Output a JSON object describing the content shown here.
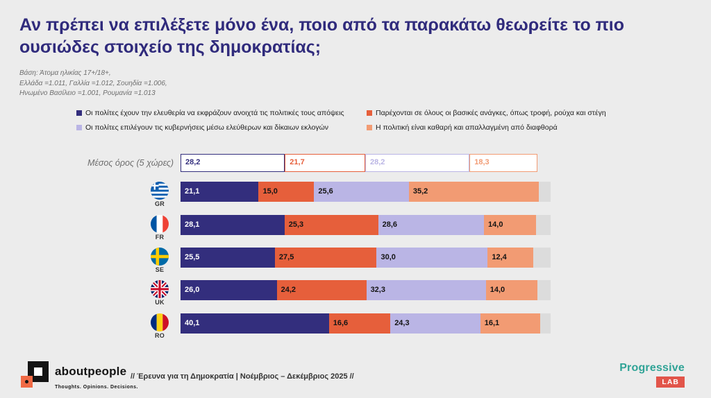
{
  "title": "Αν πρέπει να επιλέξετε μόνο ένα, ποιο από τα παρακάτω θεωρείτε το πιο ουσιώδες στοιχείο της δημοκρατίας;",
  "base_note": {
    "line1": "Βάση:  Άτομα ηλικίας 17+/18+,",
    "line2": "Ελλάδα =1.011, Γαλλία =1.012, Σουηδία =1.006,",
    "line3": "Ηνωμένο Βασίλειο =1.001, Ρουμανία =1.013"
  },
  "chart_data": {
    "type": "bar",
    "stacked": true,
    "orientation": "horizontal",
    "unit": "%",
    "xlim": [
      0,
      100
    ],
    "legend_position": "top",
    "series": [
      {
        "name": "Οι πολίτες έχουν την ελευθερία να εκφράζουν ανοιχτά τις πολιτικές τους απόψεις",
        "color": "#332e7d"
      },
      {
        "name": "Παρέχονται σε όλους οι βασικές ανάγκες, όπως τροφή, ρούχα και στέγη",
        "color": "#e65f3b"
      },
      {
        "name": "Οι πολίτες επιλέγουν τις κυβερνήσεις μέσω ελεύθερων και δίκαιων εκλογών",
        "color": "#bab5e5"
      },
      {
        "name": "Η πολιτική είναι καθαρή και απαλλαγμένη από διαφθορά",
        "color": "#f29b73"
      }
    ],
    "average": {
      "label": "Μέσος όρος (5 χώρες)",
      "values": [
        28.2,
        21.7,
        28.2,
        18.3
      ],
      "display": [
        "28,2",
        "21,7",
        "28,2",
        "18,3"
      ]
    },
    "rows": [
      {
        "code": "GR",
        "values": [
          21.1,
          15.0,
          25.6,
          35.2
        ],
        "display": [
          "21,1",
          "15,0",
          "25,6",
          "35,2"
        ]
      },
      {
        "code": "FR",
        "values": [
          28.1,
          25.3,
          28.6,
          14.0
        ],
        "display": [
          "28,1",
          "25,3",
          "28,6",
          "14,0"
        ]
      },
      {
        "code": "SE",
        "values": [
          25.5,
          27.5,
          30.0,
          12.4
        ],
        "display": [
          "25,5",
          "27,5",
          "30,0",
          "12,4"
        ]
      },
      {
        "code": "UK",
        "values": [
          26.0,
          24.2,
          32.3,
          14.0
        ],
        "display": [
          "26,0",
          "24,2",
          "32,3",
          "14,0"
        ]
      },
      {
        "code": "RO",
        "values": [
          40.1,
          16.6,
          24.3,
          16.1
        ],
        "display": [
          "40,1",
          "16,6",
          "24,3",
          "16,1"
        ]
      }
    ],
    "remainder_color": "#dcdcdc"
  },
  "footer": {
    "brand": "aboutpeople",
    "tagline": "Thoughts. Opinions. Decisions.",
    "center_text": "// Έρευνα για τη Δημοκρατία | Νοέμβριος – Δεκέμβριος 2025 //",
    "progressive": "Progressive",
    "lab": "LAB"
  },
  "colors": {
    "background": "#ececec",
    "title": "#302b7c",
    "progressive_teal": "#2fa396",
    "lab_red": "#e2554a"
  }
}
